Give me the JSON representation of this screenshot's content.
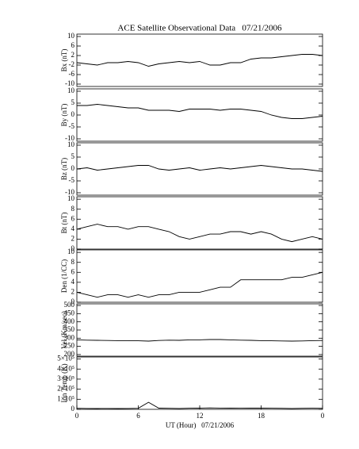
{
  "chart_data": [
    {
      "type": "line",
      "title": "ACE Satellite Observational Data   07/21/2006",
      "ylabel": "Bx (nT)",
      "xlim": [
        0,
        24
      ],
      "x": [
        0,
        1,
        2,
        3,
        4,
        5,
        6,
        7,
        8,
        9,
        10,
        11,
        12,
        13,
        14,
        15,
        16,
        17,
        18,
        19,
        20,
        21,
        22,
        23,
        24
      ],
      "series": [
        {
          "color": "#000000",
          "values": [
            -1,
            -1.5,
            -2,
            -1,
            -1,
            -0.5,
            -1,
            -2.5,
            -1.5,
            -1,
            -0.5,
            -1,
            -0.5,
            -2,
            -2,
            -1,
            -1,
            0.5,
            1,
            1,
            1.5,
            2,
            2.5,
            2.5,
            2
          ]
        }
      ],
      "ylim": [
        -11,
        11
      ],
      "yticks": [
        -10,
        -6,
        -2,
        2,
        6,
        10
      ]
    },
    {
      "type": "line",
      "ylabel": "By (nT)",
      "xlim": [
        0,
        24
      ],
      "x": [
        0,
        1,
        2,
        3,
        4,
        5,
        6,
        7,
        8,
        9,
        10,
        11,
        12,
        13,
        14,
        15,
        16,
        17,
        18,
        19,
        20,
        21,
        22,
        23,
        24
      ],
      "series": [
        {
          "color": "#000000",
          "values": [
            4,
            4,
            4.5,
            4,
            3.5,
            3,
            3,
            2,
            2,
            2,
            1.5,
            2.5,
            2.5,
            2.5,
            2,
            2.5,
            2.5,
            2,
            1.5,
            0,
            -1,
            -1.5,
            -1.5,
            -1,
            -0.5
          ]
        }
      ],
      "ylim": [
        -11,
        11
      ],
      "yticks": [
        -10,
        -5,
        0,
        5,
        10
      ]
    },
    {
      "type": "line",
      "ylabel": "Bz (nT)",
      "xlim": [
        0,
        24
      ],
      "x": [
        0,
        1,
        2,
        3,
        4,
        5,
        6,
        7,
        8,
        9,
        10,
        11,
        12,
        13,
        14,
        15,
        16,
        17,
        18,
        19,
        20,
        21,
        22,
        23,
        24
      ],
      "series": [
        {
          "color": "#000000",
          "values": [
            0,
            0.5,
            -0.5,
            0,
            0.5,
            1,
            1.5,
            1.5,
            0,
            -0.5,
            0,
            0.5,
            -0.5,
            0,
            0.5,
            0,
            0.5,
            1,
            1.5,
            1,
            0.5,
            0,
            0,
            -0.5,
            -1
          ]
        }
      ],
      "ylim": [
        -11,
        11
      ],
      "yticks": [
        -10,
        -5,
        0,
        5,
        10
      ]
    },
    {
      "type": "line",
      "ylabel": "Bt (nT)",
      "xlim": [
        0,
        24
      ],
      "x": [
        0,
        1,
        2,
        3,
        4,
        5,
        6,
        7,
        8,
        9,
        10,
        11,
        12,
        13,
        14,
        15,
        16,
        17,
        18,
        19,
        20,
        21,
        22,
        23,
        24
      ],
      "series": [
        {
          "color": "#000000",
          "values": [
            4,
            4.5,
            5,
            4.5,
            4.5,
            4,
            4.5,
            4.5,
            4,
            3.5,
            2.5,
            2,
            2.5,
            3,
            3,
            3.5,
            3.5,
            3,
            3.5,
            3,
            2,
            1.5,
            2,
            2.5,
            2
          ]
        }
      ],
      "ylim": [
        0,
        10.5
      ],
      "yticks": [
        0,
        2,
        4,
        6,
        8,
        10
      ]
    },
    {
      "type": "line",
      "ylabel": "Den (1/CC)",
      "xlim": [
        0,
        24
      ],
      "x": [
        0,
        1,
        2,
        3,
        4,
        5,
        6,
        7,
        8,
        9,
        10,
        11,
        12,
        13,
        14,
        15,
        16,
        17,
        18,
        19,
        20,
        21,
        22,
        23,
        24
      ],
      "series": [
        {
          "color": "#000000",
          "values": [
            2,
            1.5,
            1,
            1.5,
            1.5,
            1,
            1.5,
            1,
            1.5,
            1.5,
            2,
            2,
            2,
            2.5,
            3,
            3,
            4.5,
            4.5,
            4.5,
            4.5,
            4.5,
            5,
            5,
            5.5,
            6
          ]
        }
      ],
      "ylim": [
        0,
        10.5
      ],
      "yticks": [
        0,
        2,
        4,
        6,
        8,
        10
      ]
    },
    {
      "type": "line",
      "ylabel": "Vel (Km/sec)",
      "xlim": [
        0,
        24
      ],
      "x": [
        0,
        1,
        2,
        3,
        4,
        5,
        6,
        7,
        8,
        9,
        10,
        11,
        12,
        13,
        14,
        15,
        16,
        17,
        18,
        19,
        20,
        21,
        22,
        23,
        24
      ],
      "series": [
        {
          "color": "#000000",
          "values": [
            290,
            288,
            287,
            286,
            285,
            285,
            284,
            282,
            286,
            288,
            287,
            290,
            290,
            292,
            292,
            290,
            288,
            287,
            285,
            284,
            283,
            282,
            283,
            285,
            286
          ]
        }
      ],
      "ylim": [
        190,
        510
      ],
      "yticks": [
        200,
        250,
        300,
        350,
        400,
        450,
        500
      ]
    },
    {
      "type": "line",
      "ylabel": "Ion Temp (K)",
      "xlabel": "UT (Hour)   07/21/2006",
      "xlim": [
        0,
        24
      ],
      "x": [
        0,
        1,
        2,
        3,
        4,
        5,
        6,
        7,
        8,
        9,
        10,
        11,
        12,
        13,
        14,
        15,
        16,
        17,
        18,
        19,
        20,
        21,
        22,
        23,
        24
      ],
      "series": [
        {
          "color": "#000000",
          "values": [
            10000,
            9000,
            8000,
            9000,
            8000,
            9000,
            10000,
            70000,
            12000,
            10000,
            9000,
            11000,
            12000,
            14000,
            13000,
            12000,
            11000,
            12000,
            13000,
            11000,
            10000,
            9000,
            10000,
            11000,
            10000
          ]
        }
      ],
      "ylim": [
        0,
        520000
      ],
      "yticks": [
        0,
        {
          "value": 100000,
          "label": "1×10⁵"
        },
        {
          "value": 200000,
          "label": "2×10⁵"
        },
        {
          "value": 300000,
          "label": "3×10⁵"
        },
        {
          "value": 400000,
          "label": "4×10⁵"
        },
        {
          "value": 500000,
          "label": "5×10⁵"
        }
      ],
      "xticks": [
        0,
        6,
        12,
        18,
        {
          "value": 24,
          "label": "0"
        }
      ]
    }
  ]
}
